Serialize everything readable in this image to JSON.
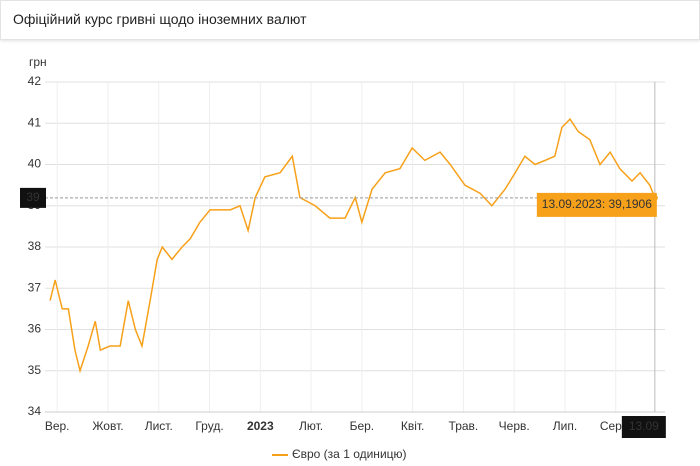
{
  "header": {
    "title": "Офіційний курс гривні щодо іноземних валют"
  },
  "chart_data": {
    "type": "line",
    "y_unit": "грн",
    "x": [
      -0.14,
      -0.04,
      0.1,
      0.22,
      0.35,
      0.45,
      0.61,
      0.75,
      0.85,
      1.04,
      1.24,
      1.4,
      1.54,
      1.67,
      1.83,
      1.97,
      2.07,
      2.26,
      2.46,
      2.62,
      2.81,
      3.01,
      3.41,
      3.6,
      3.76,
      3.9,
      4.09,
      4.39,
      4.63,
      4.78,
      5.08,
      5.37,
      5.67,
      5.87,
      6.0,
      6.2,
      6.46,
      6.75,
      6.99,
      7.24,
      7.54,
      7.74,
      8.03,
      8.33,
      8.56,
      8.82,
      9.02,
      9.21,
      9.41,
      9.61,
      9.8,
      9.94,
      10.1,
      10.26,
      10.49,
      10.69,
      10.89,
      11.08,
      11.32,
      11.48,
      11.67,
      11.77
    ],
    "series": [
      {
        "name": "Євро (за 1 одиницю)",
        "color": "#f7a11a",
        "values": [
          36.7,
          37.2,
          36.5,
          36.5,
          35.5,
          35.0,
          35.6,
          36.2,
          35.5,
          35.6,
          35.6,
          36.7,
          36.0,
          35.6,
          36.7,
          37.7,
          38.0,
          37.7,
          38.0,
          38.2,
          38.6,
          38.9,
          38.9,
          39.0,
          38.4,
          39.2,
          39.7,
          39.8,
          40.2,
          39.2,
          39.0,
          38.7,
          38.7,
          39.2,
          38.6,
          39.4,
          39.8,
          39.9,
          40.4,
          40.1,
          40.3,
          40.0,
          39.5,
          39.3,
          39.0,
          39.4,
          39.8,
          40.2,
          40.0,
          40.1,
          40.2,
          40.9,
          41.1,
          40.8,
          40.6,
          40.0,
          40.3,
          39.9,
          39.6,
          39.8,
          39.5,
          39.1906
        ]
      }
    ],
    "xlim": [
      -0.24,
      11.97
    ],
    "xticks": [
      {
        "value": 0,
        "label": "Вер."
      },
      {
        "value": 1,
        "label": "Жовт."
      },
      {
        "value": 2,
        "label": "Лист."
      },
      {
        "value": 3,
        "label": "Груд."
      },
      {
        "value": 4,
        "label": "2023",
        "bold": true
      },
      {
        "value": 5,
        "label": "Лют."
      },
      {
        "value": 6,
        "label": "Бер."
      },
      {
        "value": 7,
        "label": "Квіт."
      },
      {
        "value": 8,
        "label": "Трав."
      },
      {
        "value": 9,
        "label": "Черв."
      },
      {
        "value": 10,
        "label": "Лип."
      },
      {
        "value": 11,
        "label": "Серп."
      }
    ],
    "ylim": [
      34,
      42
    ],
    "yticks": [
      34,
      35,
      36,
      37,
      38,
      39,
      40,
      41,
      42
    ],
    "grid": true,
    "crosshair": {
      "y_label": "39",
      "x_label": "13.09",
      "tooltip": "13.09.2023: 39,1906"
    }
  }
}
